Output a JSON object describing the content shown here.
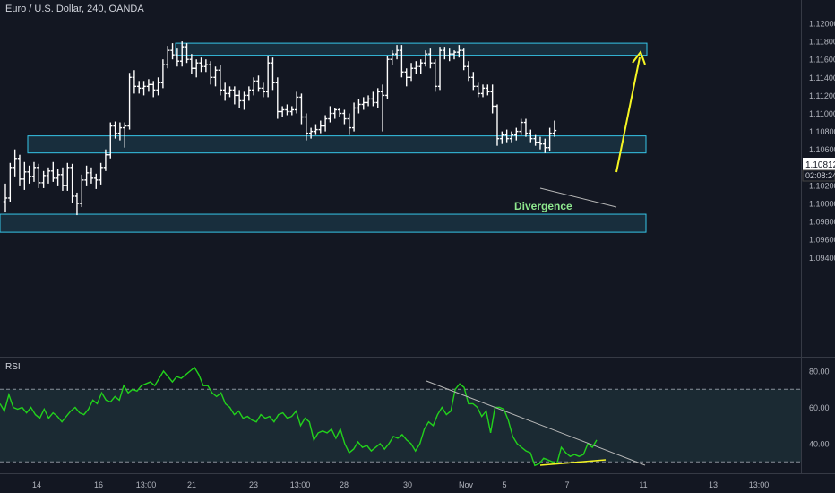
{
  "header": {
    "title": "Euro / U.S. Dollar, 240, OANDA"
  },
  "rsi_panel": {
    "title": "RSI"
  },
  "price_badge": {
    "value": "1.10812",
    "countdown": "02:08:24"
  },
  "annotations": {
    "divergence": "Divergence"
  },
  "colors": {
    "background": "#131722",
    "candle": "#ffffff",
    "zone_fill": "#1e4c5f",
    "zone_stroke": "#36c5e8",
    "rsi_line": "#22d11c",
    "rsi_band": "#1b2a33",
    "arrow": "#f5f523",
    "divergence_text": "#8ee88e",
    "trendline": "#b7b7b7"
  },
  "chart_data": [
    {
      "type": "ohlc",
      "title": "Euro / U.S. Dollar, 240, OANDA",
      "ylim": [
        1.092,
        1.121
      ],
      "yticks": [
        "1.12000",
        "1.11800",
        "1.11600",
        "1.11400",
        "1.11200",
        "1.11000",
        "1.10800",
        "1.10600",
        "1.10400",
        "1.10200",
        "1.10000",
        "1.09800",
        "1.09600",
        "1.09400"
      ],
      "xticks": [
        "14",
        "16",
        "13:00",
        "21",
        "23",
        "13:00",
        "28",
        "30",
        "Nov",
        "5",
        "7",
        "11",
        "13",
        "13:00"
      ],
      "last_price": 1.10812,
      "bars": [
        [
          1.1002,
          1.1022,
          1.099,
          1.1006
        ],
        [
          1.1006,
          1.1045,
          1.1002,
          1.104
        ],
        [
          1.104,
          1.106,
          1.103,
          1.105
        ],
        [
          1.105,
          1.1054,
          1.102,
          1.1027
        ],
        [
          1.1027,
          1.1046,
          1.1015,
          1.1035
        ],
        [
          1.1035,
          1.1042,
          1.1022,
          1.103
        ],
        [
          1.103,
          1.1046,
          1.1024,
          1.104
        ],
        [
          1.104,
          1.1044,
          1.1017,
          1.1023
        ],
        [
          1.1023,
          1.1036,
          1.1017,
          1.1031
        ],
        [
          1.1031,
          1.104,
          1.1022,
          1.1036
        ],
        [
          1.1036,
          1.1046,
          1.1024,
          1.1028
        ],
        [
          1.1028,
          1.1038,
          1.102,
          1.1032
        ],
        [
          1.1032,
          1.104,
          1.1014,
          1.102
        ],
        [
          1.102,
          1.1045,
          1.1014,
          1.104
        ],
        [
          1.104,
          1.1044,
          1.1,
          1.1008
        ],
        [
          1.1008,
          1.1012,
          1.0987,
          1.1
        ],
        [
          1.1,
          1.1032,
          1.0996,
          1.1026
        ],
        [
          1.1026,
          1.1042,
          1.102,
          1.1034
        ],
        [
          1.1034,
          1.104,
          1.1022,
          1.1028
        ],
        [
          1.1028,
          1.1033,
          1.1016,
          1.1026
        ],
        [
          1.1026,
          1.1045,
          1.1021,
          1.104
        ],
        [
          1.104,
          1.106,
          1.1036,
          1.1054
        ],
        [
          1.1054,
          1.109,
          1.105,
          1.1086
        ],
        [
          1.1086,
          1.1091,
          1.1072,
          1.1078
        ],
        [
          1.1078,
          1.109,
          1.107,
          1.1084
        ],
        [
          1.1084,
          1.109,
          1.1062,
          1.1086
        ],
        [
          1.1086,
          1.1145,
          1.1082,
          1.114
        ],
        [
          1.114,
          1.1148,
          1.1122,
          1.113
        ],
        [
          1.113,
          1.1136,
          1.1122,
          1.1128
        ],
        [
          1.1128,
          1.1136,
          1.112,
          1.113
        ],
        [
          1.113,
          1.1138,
          1.1124,
          1.1132
        ],
        [
          1.1132,
          1.1136,
          1.1118,
          1.1126
        ],
        [
          1.1126,
          1.114,
          1.112,
          1.1134
        ],
        [
          1.1134,
          1.116,
          1.1128,
          1.1154
        ],
        [
          1.1154,
          1.1175,
          1.115,
          1.117
        ],
        [
          1.117,
          1.1178,
          1.116,
          1.1165
        ],
        [
          1.1165,
          1.1172,
          1.1152,
          1.1158
        ],
        [
          1.1158,
          1.118,
          1.1152,
          1.1174
        ],
        [
          1.1174,
          1.1178,
          1.1156,
          1.116
        ],
        [
          1.116,
          1.1166,
          1.1144,
          1.115
        ],
        [
          1.115,
          1.116,
          1.114,
          1.1156
        ],
        [
          1.1156,
          1.1162,
          1.1146,
          1.1152
        ],
        [
          1.1152,
          1.116,
          1.1146,
          1.1154
        ],
        [
          1.1154,
          1.1158,
          1.1132,
          1.114
        ],
        [
          1.114,
          1.1152,
          1.113,
          1.1148
        ],
        [
          1.1148,
          1.1154,
          1.112,
          1.1126
        ],
        [
          1.1126,
          1.1134,
          1.1114,
          1.1122
        ],
        [
          1.1122,
          1.113,
          1.1118,
          1.1126
        ],
        [
          1.1126,
          1.113,
          1.111,
          1.112
        ],
        [
          1.112,
          1.1126,
          1.1106,
          1.1114
        ],
        [
          1.1114,
          1.1124,
          1.1104,
          1.112
        ],
        [
          1.112,
          1.113,
          1.1114,
          1.1126
        ],
        [
          1.1126,
          1.114,
          1.112,
          1.1136
        ],
        [
          1.1136,
          1.1142,
          1.1124,
          1.1128
        ],
        [
          1.1128,
          1.1134,
          1.1118,
          1.1124
        ],
        [
          1.1124,
          1.1164,
          1.1118,
          1.1156
        ],
        [
          1.1156,
          1.1162,
          1.1126,
          1.1134
        ],
        [
          1.1134,
          1.114,
          1.1094,
          1.1102
        ],
        [
          1.1102,
          1.1108,
          1.1096,
          1.1104
        ],
        [
          1.1104,
          1.111,
          1.1098,
          1.1102
        ],
        [
          1.1102,
          1.1108,
          1.1098,
          1.1104
        ],
        [
          1.1104,
          1.1124,
          1.11,
          1.1118
        ],
        [
          1.1118,
          1.1122,
          1.1088,
          1.1096
        ],
        [
          1.1096,
          1.11,
          1.107,
          1.1078
        ],
        [
          1.1078,
          1.1084,
          1.1072,
          1.108
        ],
        [
          1.108,
          1.1088,
          1.1076,
          1.1082
        ],
        [
          1.1082,
          1.1092,
          1.1078,
          1.1086
        ],
        [
          1.1086,
          1.1098,
          1.108,
          1.1094
        ],
        [
          1.1094,
          1.1108,
          1.109,
          1.11
        ],
        [
          1.11,
          1.1106,
          1.1094,
          1.1104
        ],
        [
          1.1104,
          1.1106,
          1.1096,
          1.11
        ],
        [
          1.11,
          1.1104,
          1.1088,
          1.1094
        ],
        [
          1.1094,
          1.11,
          1.1076,
          1.1084
        ],
        [
          1.1084,
          1.1112,
          1.108,
          1.1106
        ],
        [
          1.1106,
          1.1116,
          1.11,
          1.111
        ],
        [
          1.111,
          1.1118,
          1.1104,
          1.1112
        ],
        [
          1.1112,
          1.112,
          1.1108,
          1.1116
        ],
        [
          1.1116,
          1.1124,
          1.1108,
          1.1112
        ],
        [
          1.1112,
          1.1128,
          1.1106,
          1.1124
        ],
        [
          1.1124,
          1.1132,
          1.108,
          1.112
        ],
        [
          1.112,
          1.1164,
          1.1116,
          1.116
        ],
        [
          1.116,
          1.117,
          1.1154,
          1.1166
        ],
        [
          1.1166,
          1.1176,
          1.116,
          1.117
        ],
        [
          1.117,
          1.1176,
          1.114,
          1.1146
        ],
        [
          1.1146,
          1.115,
          1.113,
          1.114
        ],
        [
          1.114,
          1.1156,
          1.1136,
          1.115
        ],
        [
          1.115,
          1.1158,
          1.1144,
          1.1152
        ],
        [
          1.1152,
          1.116,
          1.1144,
          1.1156
        ],
        [
          1.1156,
          1.117,
          1.1152,
          1.1166
        ],
        [
          1.1166,
          1.1172,
          1.115,
          1.1156
        ],
        [
          1.1156,
          1.116,
          1.1124,
          1.113
        ],
        [
          1.113,
          1.1174,
          1.1126,
          1.117
        ],
        [
          1.117,
          1.1174,
          1.116,
          1.1164
        ],
        [
          1.1164,
          1.1172,
          1.1158,
          1.1166
        ],
        [
          1.1166,
          1.117,
          1.116,
          1.1168
        ],
        [
          1.1168,
          1.1176,
          1.1162,
          1.117
        ],
        [
          1.117,
          1.1172,
          1.1148,
          1.1152
        ],
        [
          1.1152,
          1.1158,
          1.1136,
          1.114
        ],
        [
          1.114,
          1.1146,
          1.1126,
          1.113
        ],
        [
          1.113,
          1.1134,
          1.1118,
          1.1122
        ],
        [
          1.1122,
          1.1132,
          1.1118,
          1.1128
        ],
        [
          1.1128,
          1.1132,
          1.112,
          1.1124
        ],
        [
          1.1124,
          1.1132,
          1.11,
          1.1108
        ],
        [
          1.1108,
          1.111,
          1.1064,
          1.1072
        ],
        [
          1.1072,
          1.108,
          1.1066,
          1.1076
        ],
        [
          1.1076,
          1.1082,
          1.1068,
          1.1072
        ],
        [
          1.1072,
          1.108,
          1.1068,
          1.1076
        ],
        [
          1.1076,
          1.1084,
          1.107,
          1.108
        ],
        [
          1.108,
          1.1094,
          1.1076,
          1.109
        ],
        [
          1.109,
          1.1094,
          1.1074,
          1.1078
        ],
        [
          1.1078,
          1.1082,
          1.1068,
          1.1072
        ],
        [
          1.1072,
          1.1076,
          1.1064,
          1.1068
        ],
        [
          1.1068,
          1.1074,
          1.106,
          1.1066
        ],
        [
          1.1066,
          1.1072,
          1.1056,
          1.1062
        ],
        [
          1.1062,
          1.1084,
          1.1058,
          1.1078
        ],
        [
          1.1078,
          1.1092,
          1.1074,
          1.1081
        ]
      ],
      "zones": [
        {
          "top": 1.1178,
          "bottom": 1.11725
        },
        {
          "top": 1.1075,
          "bottom": 1.1064
        },
        {
          "top": 1.0988,
          "bottom": 1.0976
        }
      ],
      "divergence_line": [
        [
          1.1062,
          1.1052
        ]
      ],
      "projection_arrow": {
        "from": 1.1082,
        "to": 1.1166
      }
    },
    {
      "type": "line",
      "title": "RSI",
      "ylim": [
        20,
        85
      ],
      "yticks": [
        "80.00",
        "60.00",
        "40.00"
      ],
      "levels": [
        70,
        30
      ],
      "values": [
        62,
        58,
        67,
        60,
        59,
        60,
        57,
        60,
        56,
        54,
        59,
        54,
        57,
        55,
        52,
        55,
        58,
        60,
        57,
        56,
        59,
        64,
        62,
        68,
        64,
        63,
        66,
        64,
        72,
        68,
        70,
        69,
        72,
        73,
        74,
        72,
        76,
        80,
        77,
        74,
        77,
        76,
        78,
        80,
        82,
        78,
        72,
        72,
        68,
        66,
        68,
        62,
        60,
        56,
        58,
        54,
        55,
        53,
        52,
        56,
        54,
        55,
        52,
        56,
        57,
        54,
        55,
        58,
        50,
        54,
        52,
        42,
        46,
        47,
        46,
        48,
        43,
        48,
        40,
        35,
        37,
        41,
        38,
        39,
        36,
        38,
        40,
        37,
        40,
        44,
        43,
        45,
        42,
        40,
        36,
        40,
        48,
        52,
        50,
        56,
        60,
        56,
        58,
        70,
        73,
        71,
        62,
        62,
        60,
        55,
        58,
        46,
        60,
        60,
        59,
        53,
        44,
        40,
        38,
        36,
        35,
        28,
        29,
        32,
        31,
        30,
        29,
        38,
        35,
        33,
        34,
        33,
        34,
        40,
        38,
        42
      ]
    }
  ]
}
